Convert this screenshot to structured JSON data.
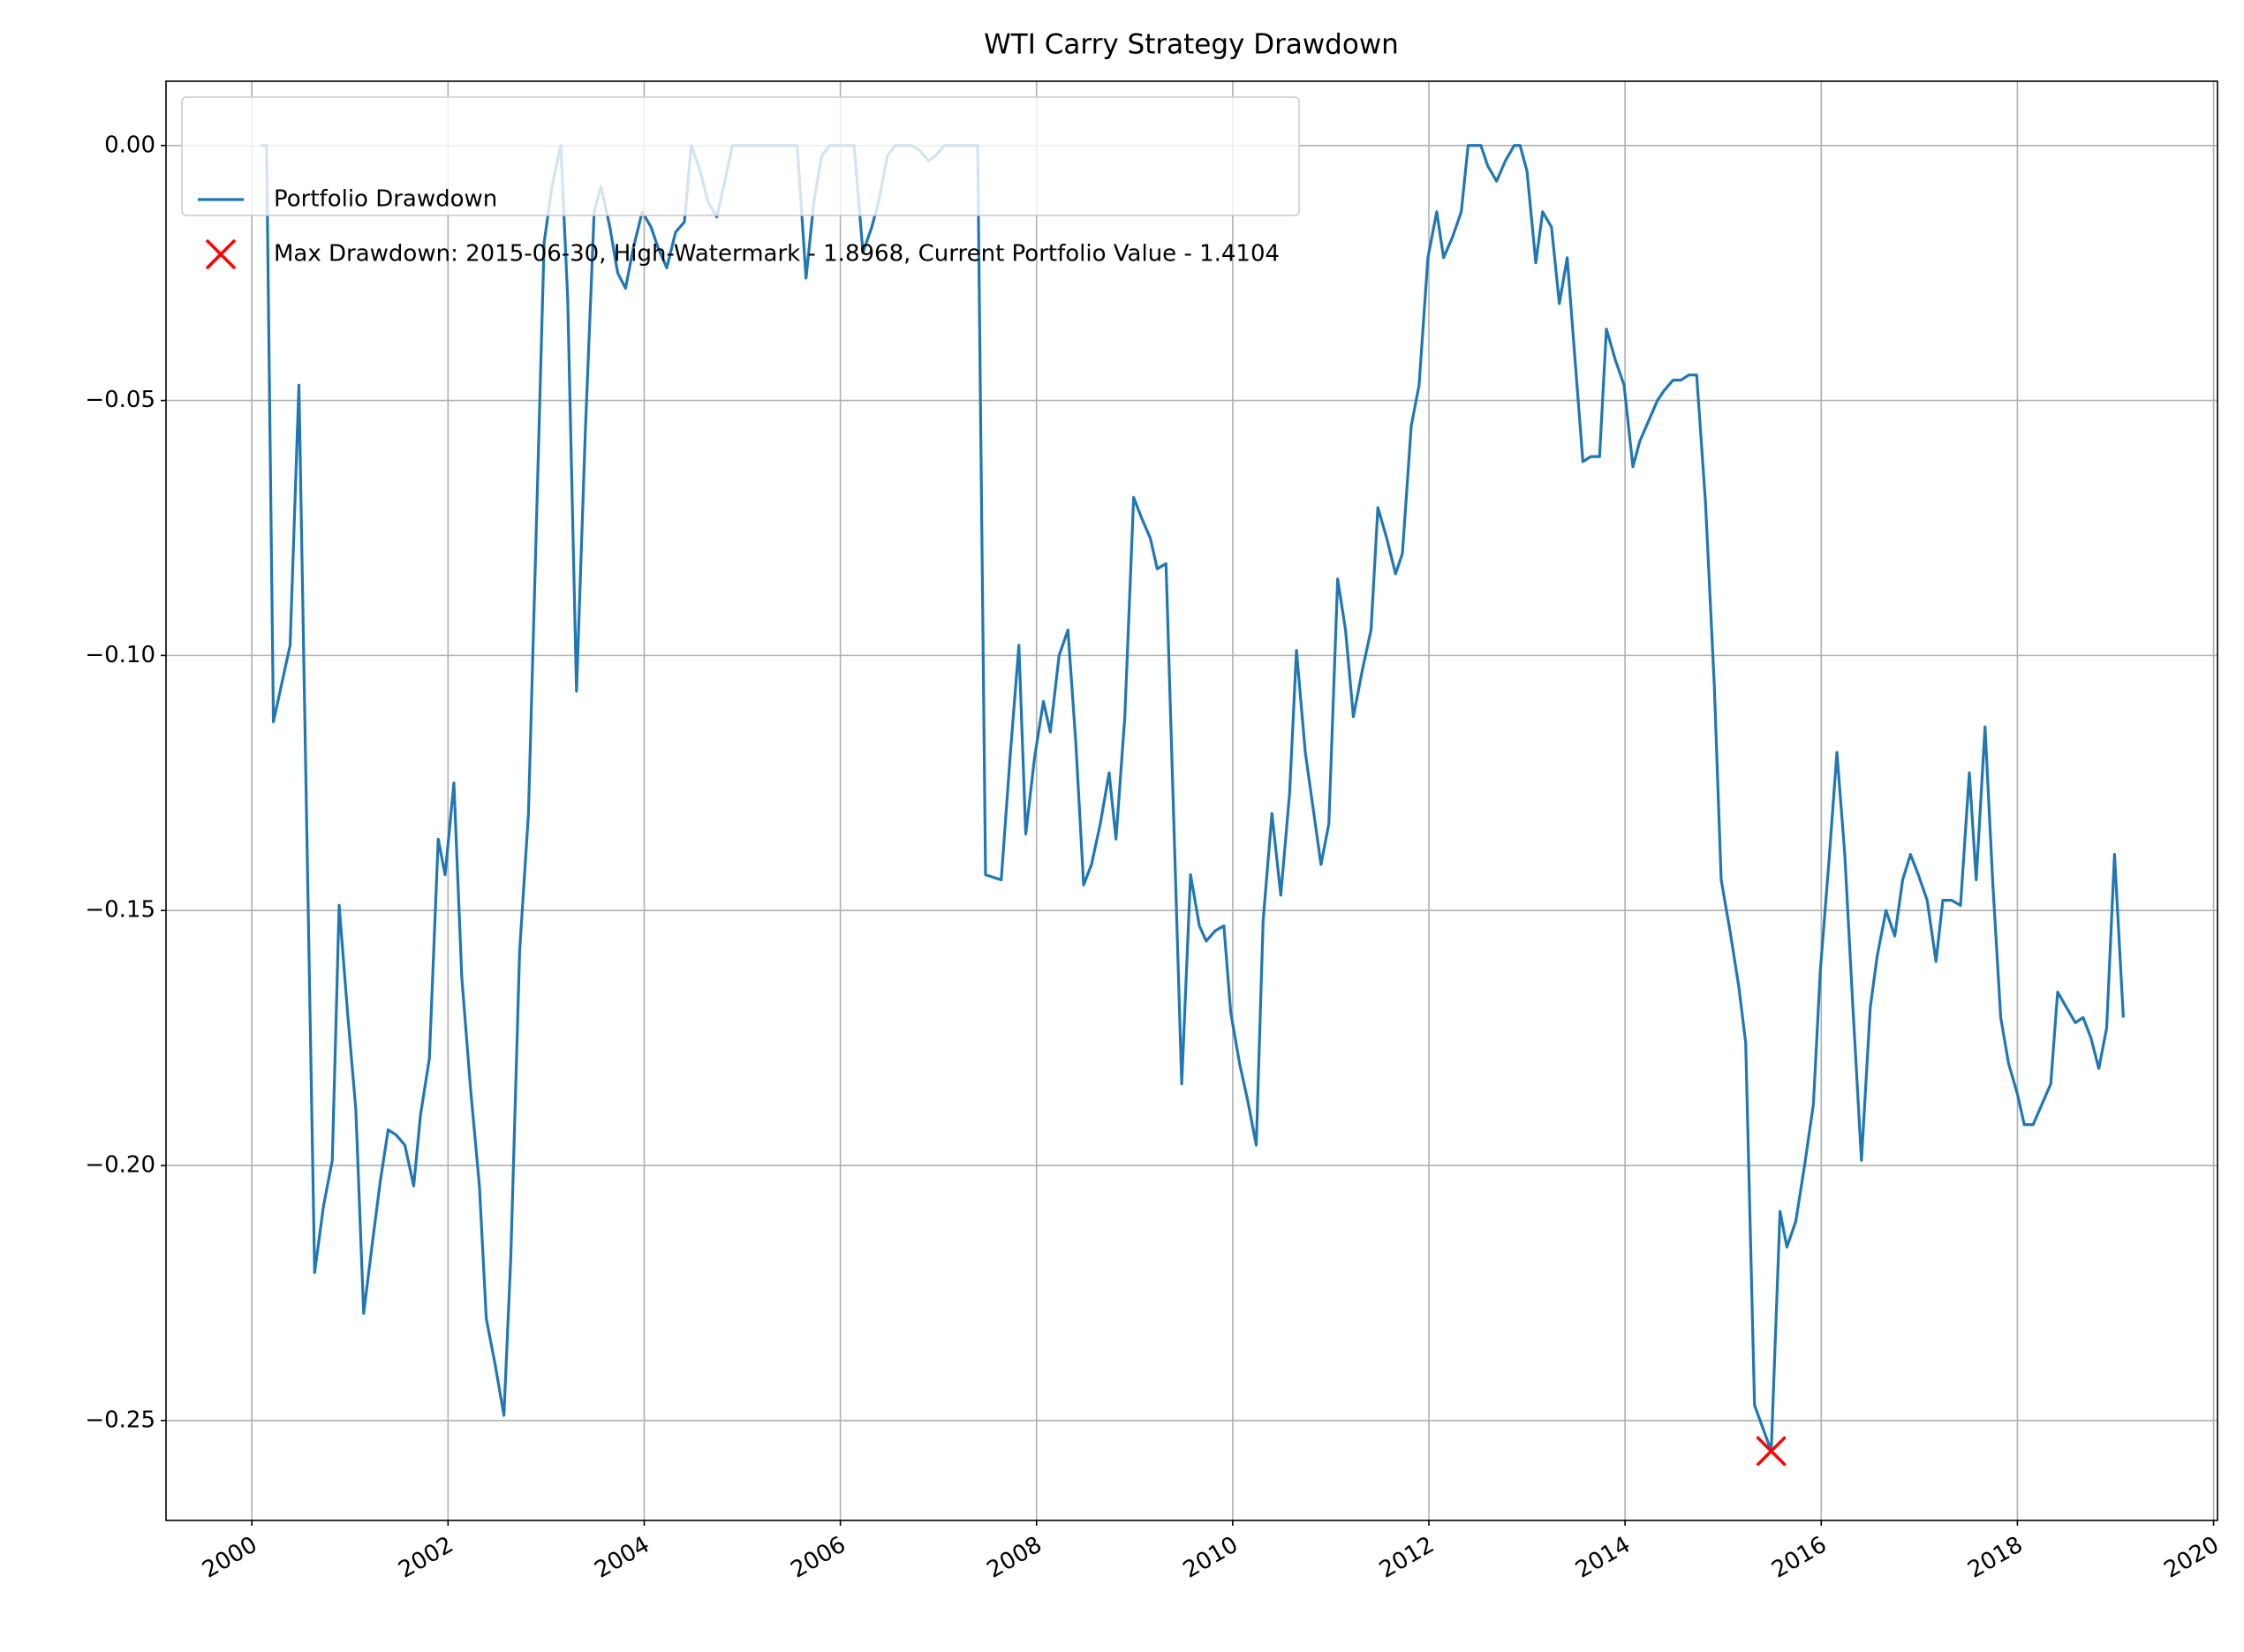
{
  "chart_data": {
    "type": "line",
    "title": "WTI Carry Strategy Drawdown",
    "x": [
      2000.09,
      2000.15,
      2000.22,
      2000.39,
      2000.48,
      2000.64,
      2000.73,
      2000.82,
      2000.89,
      2000.98,
      2001.06,
      2001.14,
      2001.23,
      2001.31,
      2001.39,
      2001.47,
      2001.56,
      2001.65,
      2001.72,
      2001.81,
      2001.9,
      2001.97,
      2002.06,
      2002.14,
      2002.23,
      2002.32,
      2002.39,
      2002.48,
      2002.57,
      2002.64,
      2002.73,
      2002.82,
      2002.98,
      2003.06,
      2003.15,
      2003.22,
      2003.31,
      2003.4,
      2003.49,
      2003.56,
      2003.65,
      2003.73,
      2003.81,
      2003.89,
      2003.98,
      2004.07,
      2004.14,
      2004.23,
      2004.32,
      2004.41,
      2004.48,
      2004.57,
      2004.65,
      2004.74,
      2004.81,
      2004.9,
      2005.56,
      2005.65,
      2005.73,
      2005.81,
      2005.89,
      2006.14,
      2006.23,
      2006.32,
      2006.39,
      2006.48,
      2006.56,
      2006.73,
      2006.81,
      2006.9,
      2006.97,
      2007.06,
      2007.4,
      2007.48,
      2007.64,
      2007.73,
      2007.82,
      2007.89,
      2007.98,
      2008.07,
      2008.14,
      2008.23,
      2008.32,
      2008.4,
      2008.48,
      2008.56,
      2008.65,
      2008.74,
      2008.81,
      2008.9,
      2008.99,
      2009.07,
      2009.16,
      2009.23,
      2009.32,
      2009.48,
      2009.57,
      2009.66,
      2009.73,
      2009.82,
      2009.91,
      2009.98,
      2010.07,
      2010.15,
      2010.24,
      2010.31,
      2010.4,
      2010.49,
      2010.58,
      2010.65,
      2010.74,
      2010.82,
      2010.9,
      2010.98,
      2011.07,
      2011.15,
      2011.23,
      2011.32,
      2011.41,
      2011.48,
      2011.57,
      2011.66,
      2011.73,
      2011.82,
      2011.9,
      2011.99,
      2012.08,
      2012.15,
      2012.24,
      2012.33,
      2012.4,
      2012.53,
      2012.6,
      2012.69,
      2012.78,
      2012.87,
      2012.93,
      2013.0,
      2013.09,
      2013.16,
      2013.25,
      2013.33,
      2013.41,
      2013.49,
      2013.57,
      2013.65,
      2013.74,
      2013.81,
      2013.9,
      2013.99,
      2014.08,
      2014.15,
      2014.24,
      2014.33,
      2014.4,
      2014.49,
      2014.57,
      2014.65,
      2014.73,
      2014.82,
      2014.91,
      2014.98,
      2015.07,
      2015.16,
      2015.23,
      2015.32,
      2015.49,
      2015.58,
      2015.65,
      2015.74,
      2015.83,
      2015.92,
      2015.99,
      2016.08,
      2016.16,
      2016.24,
      2016.32,
      2016.41,
      2016.5,
      2016.57,
      2016.66,
      2016.75,
      2016.83,
      2016.91,
      2016.99,
      2017.08,
      2017.17,
      2017.24,
      2017.33,
      2017.42,
      2017.51,
      2017.58,
      2017.67,
      2017.75,
      2017.83,
      2017.91,
      2018.0,
      2018.07,
      2018.16,
      2018.25,
      2018.34,
      2018.41,
      2018.5,
      2018.59,
      2018.67,
      2018.75,
      2018.83,
      2018.91,
      2018.99,
      2019.08
    ],
    "series": [
      {
        "name": "Portfolio Drawdown",
        "color": "#1f77b4",
        "values": [
          0,
          0,
          -0.113,
          -0.098,
          -0.047,
          -0.221,
          -0.208,
          -0.199,
          -0.149,
          -0.171,
          -0.189,
          -0.229,
          -0.215,
          -0.203,
          -0.193,
          -0.194,
          -0.196,
          -0.204,
          -0.19,
          -0.179,
          -0.136,
          -0.143,
          -0.125,
          -0.163,
          -0.185,
          -0.204,
          -0.23,
          -0.239,
          -0.249,
          -0.218,
          -0.158,
          -0.131,
          -0.019,
          -0.008,
          0,
          -0.03,
          -0.107,
          -0.056,
          -0.013,
          -0.008,
          -0.016,
          -0.025,
          -0.028,
          -0.02,
          -0.013,
          -0.016,
          -0.02,
          -0.024,
          -0.017,
          -0.015,
          0,
          -0.005,
          -0.011,
          -0.014,
          -0.008,
          0,
          0,
          -0.026,
          -0.011,
          -0.002,
          0,
          0,
          -0.021,
          -0.016,
          -0.011,
          -0.002,
          0,
          0,
          -0.001,
          -0.003,
          -0.002,
          0,
          0,
          -0.143,
          -0.144,
          -0.12,
          -0.098,
          -0.135,
          -0.12,
          -0.109,
          -0.115,
          -0.1,
          -0.095,
          -0.117,
          -0.145,
          -0.141,
          -0.133,
          -0.123,
          -0.136,
          -0.112,
          -0.069,
          -0.073,
          -0.077,
          -0.083,
          -0.082,
          -0.184,
          -0.143,
          -0.153,
          -0.156,
          -0.154,
          -0.153,
          -0.17,
          -0.18,
          -0.187,
          -0.196,
          -0.152,
          -0.131,
          -0.147,
          -0.127,
          -0.099,
          -0.119,
          -0.13,
          -0.141,
          -0.133,
          -0.085,
          -0.095,
          -0.112,
          -0.103,
          -0.095,
          -0.071,
          -0.077,
          -0.084,
          -0.08,
          -0.055,
          -0.047,
          -0.022,
          -0.013,
          -0.022,
          -0.018,
          -0.013,
          0,
          0,
          -0.004,
          -0.007,
          -0.003,
          0,
          0,
          -0.005,
          -0.023,
          -0.013,
          -0.016,
          -0.031,
          -0.022,
          -0.042,
          -0.062,
          -0.061,
          -0.061,
          -0.036,
          -0.042,
          -0.047,
          -0.063,
          -0.058,
          -0.054,
          -0.05,
          -0.048,
          -0.046,
          -0.046,
          -0.045,
          -0.045,
          -0.07,
          -0.106,
          -0.144,
          -0.154,
          -0.165,
          -0.176,
          -0.247,
          -0.256,
          -0.209,
          -0.216,
          -0.211,
          -0.2,
          -0.188,
          -0.162,
          -0.14,
          -0.119,
          -0.139,
          -0.168,
          -0.199,
          -0.169,
          -0.159,
          -0.15,
          -0.155,
          -0.144,
          -0.139,
          -0.143,
          -0.148,
          -0.16,
          -0.148,
          -0.148,
          -0.149,
          -0.123,
          -0.144,
          -0.114,
          -0.145,
          -0.171,
          -0.18,
          -0.186,
          -0.192,
          -0.192,
          -0.188,
          -0.184,
          -0.166,
          -0.169,
          -0.172,
          -0.171,
          -0.175,
          -0.181,
          -0.173,
          -0.139,
          -0.171
        ]
      }
    ],
    "marker": {
      "name": "Max Drawdown: 2015-06-30, High-Watermark - 1.8968, Current Portfolio Value - 1.4104",
      "x": 2015.49,
      "y": -0.256,
      "color": "#ff0000"
    },
    "xlim": [
      1999.125,
      2020.04
    ],
    "ylim": [
      -0.2696,
      0.0126
    ],
    "xticks": [
      2000,
      2002,
      2004,
      2006,
      2008,
      2010,
      2012,
      2014,
      2016,
      2018,
      2020
    ],
    "yticks": [
      {
        "value": -0.25,
        "label": "−0.25"
      },
      {
        "value": -0.2,
        "label": "−0.20"
      },
      {
        "value": -0.15,
        "label": "−0.15"
      },
      {
        "value": -0.1,
        "label": "−0.10"
      },
      {
        "value": -0.05,
        "label": "−0.05"
      },
      {
        "value": 0,
        "label": "0.00"
      }
    ],
    "grid": true,
    "legend": "upper left"
  }
}
